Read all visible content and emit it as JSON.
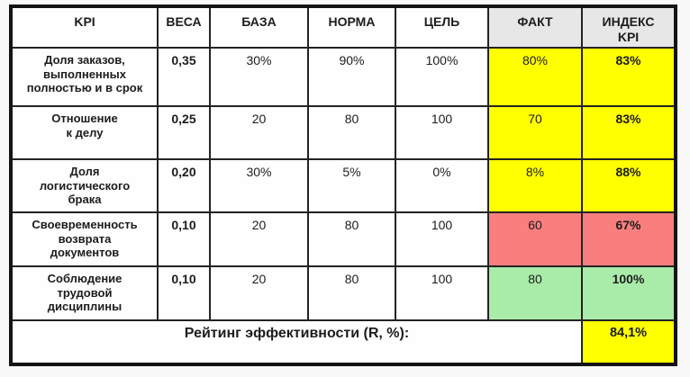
{
  "table": {
    "columns": [
      {
        "label": "KPI"
      },
      {
        "label": "ВЕСА"
      },
      {
        "label": "БАЗА"
      },
      {
        "label": "НОРМА"
      },
      {
        "label": "ЦЕЛЬ"
      },
      {
        "label": "ФАКТ"
      },
      {
        "label": "ИНДЕКС\nKPI"
      }
    ],
    "rows": [
      {
        "kpi": "Доля заказов,\nвыполненных\nполностью и в срок",
        "weight": "0,35",
        "base": "30%",
        "norm": "90%",
        "goal": "100%",
        "fact": "80%",
        "index": "83%",
        "status": "yellow"
      },
      {
        "kpi": "Отношение\nк делу",
        "weight": "0,25",
        "base": "20",
        "norm": "80",
        "goal": "100",
        "fact": "70",
        "index": "83%",
        "status": "yellow"
      },
      {
        "kpi": "Доля\nлогистического\nбрака",
        "weight": "0,20",
        "base": "30%",
        "norm": "5%",
        "goal": "0%",
        "fact": "8%",
        "index": "88%",
        "status": "yellow"
      },
      {
        "kpi": "Своевременность\nвозврата\nдокументов",
        "weight": "0,10",
        "base": "20",
        "norm": "80",
        "goal": "100",
        "fact": "60",
        "index": "67%",
        "status": "red"
      },
      {
        "kpi": "Соблюдение\nтрудовой\nдисциплины",
        "weight": "0,10",
        "base": "20",
        "norm": "80",
        "goal": "100",
        "fact": "80",
        "index": "100%",
        "status": "green"
      }
    ],
    "footer": {
      "label": "Рейтинг эффективности (R, %):",
      "value": "84,1%"
    }
  },
  "colors": {
    "status_yellow": "#ffff00",
    "status_red": "#f97f7f",
    "status_green": "#a9eba9",
    "header_highlight_gray": "#e7e7e7",
    "kpi_name_navy": "#2a2f8f",
    "grid_line": "#232323"
  },
  "chart_data": {
    "type": "table",
    "title": "",
    "columns": [
      "KPI",
      "ВЕСА",
      "БАЗА",
      "НОРМА",
      "ЦЕЛЬ",
      "ФАКТ",
      "ИНДЕКС KPI"
    ],
    "rows": [
      [
        "Доля заказов, выполненных полностью и в срок",
        "0,35",
        "30%",
        "90%",
        "100%",
        "80%",
        "83%"
      ],
      [
        "Отношение к делу",
        "0,25",
        "20",
        "80",
        "100",
        "70",
        "83%"
      ],
      [
        "Доля логистического брака",
        "0,20",
        "30%",
        "5%",
        "0%",
        "8%",
        "88%"
      ],
      [
        "Своевременность возврата документов",
        "0,10",
        "20",
        "80",
        "100",
        "60",
        "67%"
      ],
      [
        "Соблюдение трудовой дисциплины",
        "0,10",
        "20",
        "80",
        "100",
        "80",
        "100%"
      ]
    ],
    "footer_row": [
      "Рейтинг эффективности (R, %):",
      "84,1%"
    ],
    "highlights": {
      "fact_and_index_cells_rows_1_to_3": "yellow",
      "fact_and_index_cells_row_4": "red",
      "fact_and_index_cells_row_5": "green",
      "rating_value_cell": "yellow",
      "fact_and_index_header_cells": "gray"
    }
  }
}
